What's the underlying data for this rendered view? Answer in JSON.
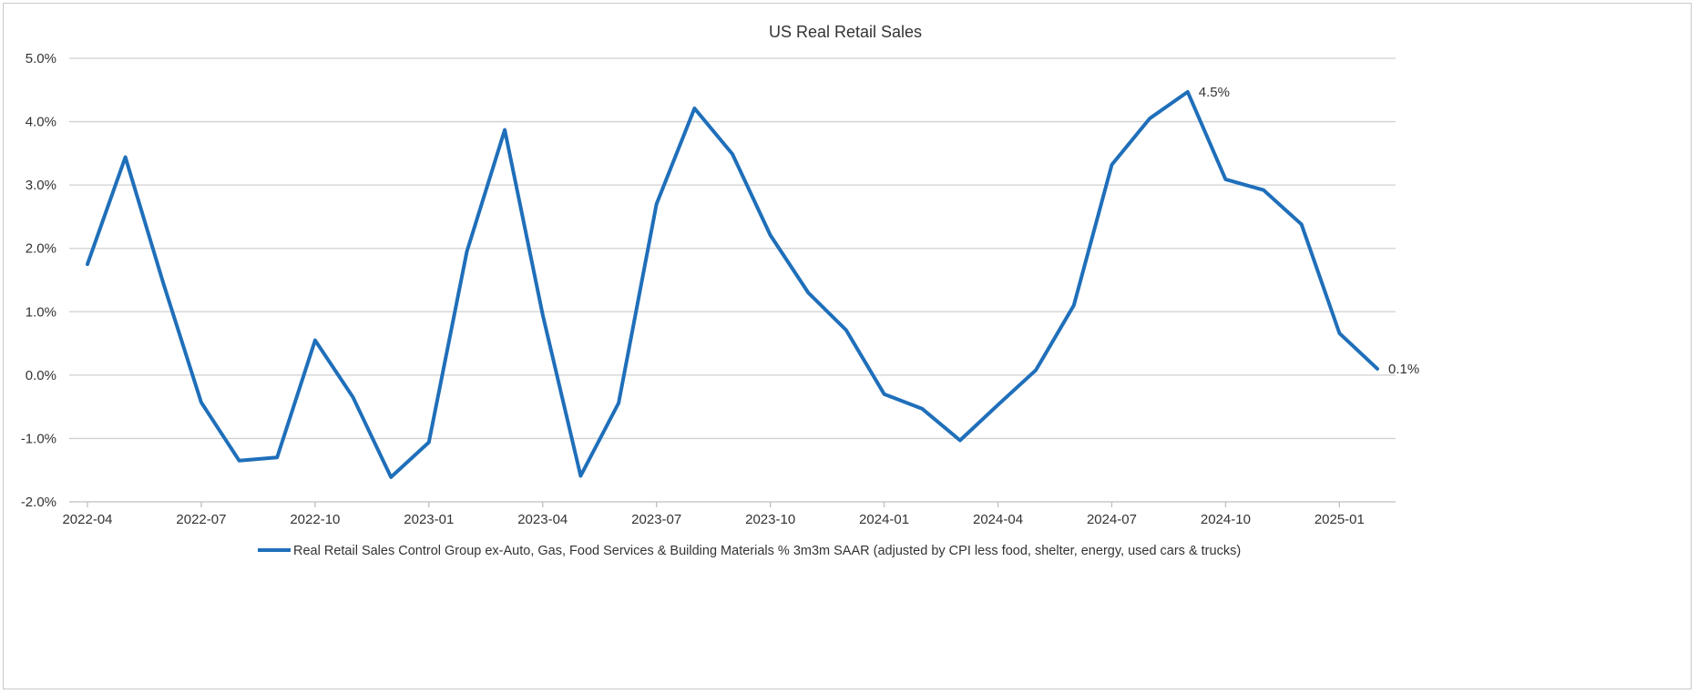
{
  "chart_data": {
    "type": "line",
    "title": "US Real Retail Sales",
    "xlabel": "",
    "ylabel": "",
    "ylim": [
      -0.02,
      0.05
    ],
    "y_ticks": [
      "-2.0%",
      "-1.0%",
      "0.0%",
      "1.0%",
      "2.0%",
      "3.0%",
      "4.0%",
      "5.0%"
    ],
    "x_ticks": [
      "2022-04",
      "2022-07",
      "2022-10",
      "2023-01",
      "2023-04",
      "2023-07",
      "2023-10",
      "2024-01",
      "2024-04",
      "2024-07",
      "2024-10",
      "2025-01"
    ],
    "grid": true,
    "legend_position": "bottom",
    "colors": {
      "series": "#1f6fba",
      "grid": "#d0d0d0",
      "frame": "#c9c9c9"
    },
    "x": [
      "2022-04",
      "2022-05",
      "2022-06",
      "2022-07",
      "2022-08",
      "2022-09",
      "2022-10",
      "2022-11",
      "2022-12",
      "2023-01",
      "2023-02",
      "2023-03",
      "2023-04",
      "2023-05",
      "2023-06",
      "2023-07",
      "2023-08",
      "2023-09",
      "2023-10",
      "2023-11",
      "2023-12",
      "2024-01",
      "2024-02",
      "2024-03",
      "2024-04",
      "2024-05",
      "2024-06",
      "2024-07",
      "2024-08",
      "2024-09",
      "2024-10",
      "2024-11",
      "2024-12",
      "2025-01",
      "2025-02"
    ],
    "series": [
      {
        "name": "Real Retail Sales Control Group ex-Auto, Gas, Food Services & Building Materials % 3m3m SAAR (adjusted by CPI  less food, shelter, energy, used cars & trucks)",
        "values": [
          0.0175,
          0.0344,
          0.0145,
          -0.0043,
          -0.0135,
          -0.013,
          0.0055,
          -0.0035,
          -0.0161,
          -0.0106,
          0.0195,
          0.0387,
          0.0095,
          -0.0159,
          -0.0044,
          0.027,
          0.0421,
          0.0349,
          0.0221,
          0.013,
          0.0071,
          -0.003,
          -0.0053,
          -0.0103,
          -0.0047,
          0.0008,
          0.011,
          0.0332,
          0.0405,
          0.0447,
          0.0309,
          0.0292,
          0.0238,
          0.0066,
          0.001
        ]
      }
    ],
    "annotations": [
      {
        "x": "2024-09",
        "text": "4.5%"
      },
      {
        "x": "2025-02",
        "text": "0.1%"
      }
    ]
  }
}
